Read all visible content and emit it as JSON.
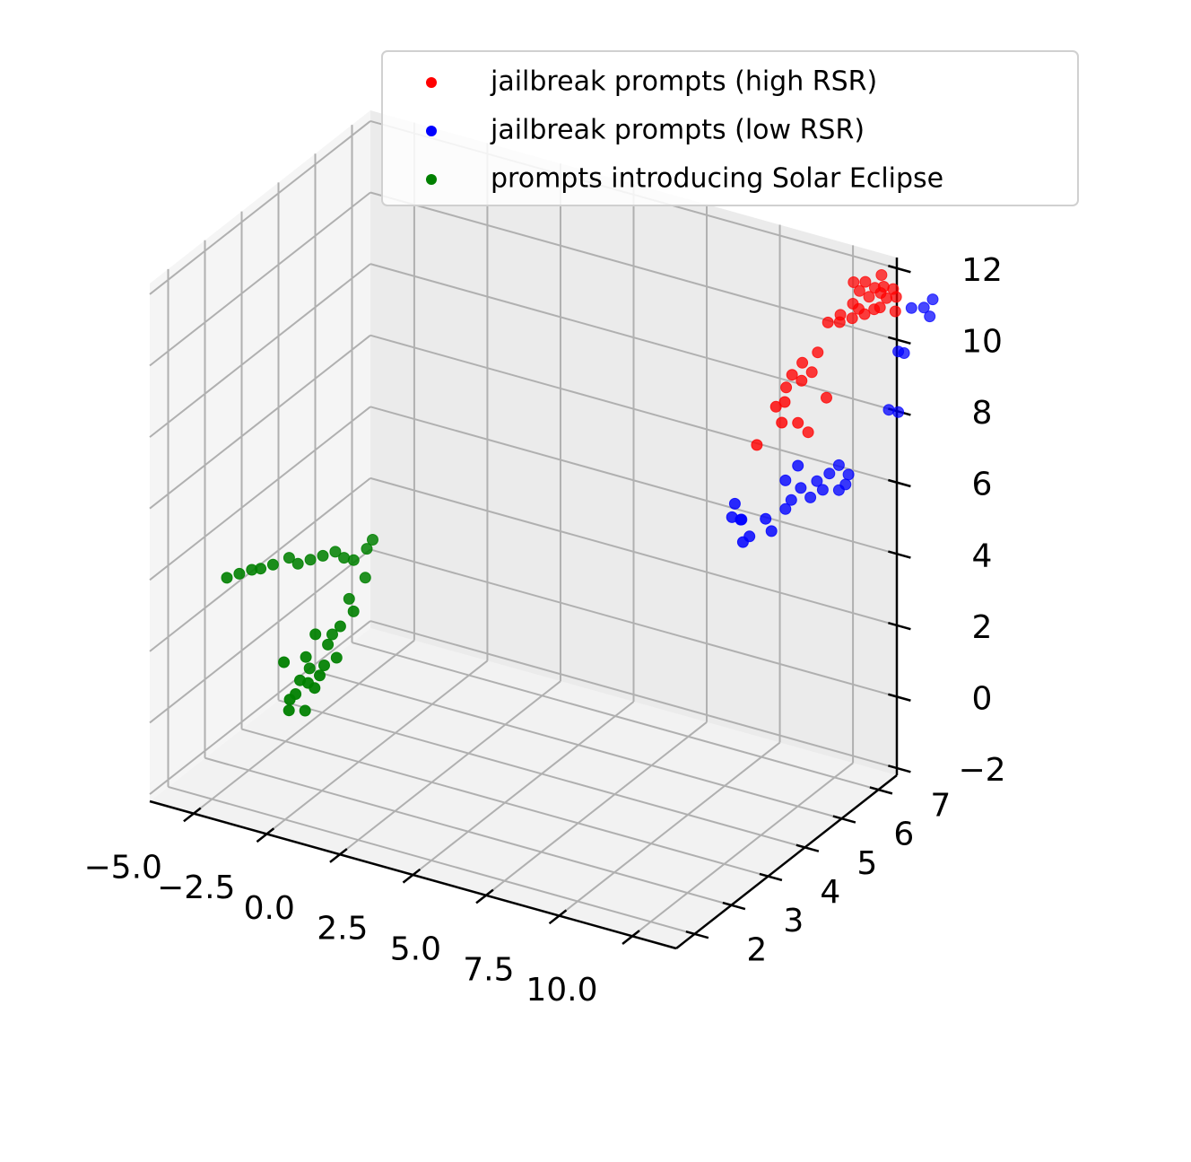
{
  "chart_data": {
    "type": "scatter",
    "projection": "3d",
    "grid": true,
    "legend_position": "top-right",
    "axes": {
      "x": {
        "range": [
          -6.5,
          11.5
        ],
        "ticks": [
          -5.0,
          -2.5,
          0.0,
          2.5,
          5.0,
          7.5,
          10.0
        ],
        "tick_labels": [
          "−5.0",
          "−2.5",
          "0.0",
          "2.5",
          "5.0",
          "7.5",
          "10.0"
        ]
      },
      "y": {
        "range": [
          1.5,
          7.5
        ],
        "ticks": [
          2,
          3,
          4,
          5,
          6,
          7
        ],
        "tick_labels": [
          "2",
          "3",
          "4",
          "5",
          "6",
          "7"
        ]
      },
      "z": {
        "range": [
          -2.2,
          12.3
        ],
        "ticks": [
          -2,
          0,
          2,
          4,
          6,
          8,
          10,
          12
        ],
        "tick_labels": [
          "−2",
          "0",
          "2",
          "4",
          "6",
          "8",
          "10",
          "12"
        ]
      }
    },
    "series": [
      {
        "name": "jailbreak prompts (high RSR)",
        "color": "#ff0000",
        "points": [
          [
            9.1,
            6.4,
            9.0
          ],
          [
            9.3,
            6.4,
            9.4
          ],
          [
            9.5,
            6.5,
            9.2
          ],
          [
            9.4,
            6.6,
            9.6
          ],
          [
            9.6,
            6.7,
            9.3
          ],
          [
            9.0,
            6.2,
            8.6
          ],
          [
            9.2,
            6.2,
            8.2
          ],
          [
            9.5,
            6.4,
            8.1
          ],
          [
            9.3,
            6.2,
            8.8
          ],
          [
            9.8,
            6.7,
            9.9
          ],
          [
            8.6,
            6.0,
            7.6
          ],
          [
            9.6,
            6.6,
            7.7
          ],
          [
            10.1,
            6.7,
            8.7
          ],
          [
            9.9,
            6.9,
            10.6
          ],
          [
            10.3,
            6.9,
            10.7
          ],
          [
            10.6,
            7.0,
            10.8
          ],
          [
            10.9,
            7.1,
            10.9
          ],
          [
            11.1,
            7.2,
            11.0
          ],
          [
            11.3,
            7.2,
            11.1
          ],
          [
            10.4,
            7.2,
            11.6
          ],
          [
            10.6,
            7.2,
            11.4
          ],
          [
            10.8,
            7.3,
            11.2
          ],
          [
            11.0,
            7.3,
            11.5
          ],
          [
            11.2,
            7.3,
            11.4
          ],
          [
            11.4,
            7.3,
            11.3
          ],
          [
            11.5,
            7.4,
            11.5
          ],
          [
            11.1,
            7.4,
            11.8
          ],
          [
            10.5,
            7.1,
            11.1
          ],
          [
            10.7,
            7.1,
            11.0
          ],
          [
            11.6,
            7.4,
            11.3
          ],
          [
            11.3,
            7.3,
            11.6
          ],
          [
            11.7,
            7.3,
            11.0
          ],
          [
            10.2,
            7.0,
            10.8
          ],
          [
            10.8,
            7.2,
            11.7
          ]
        ]
      },
      {
        "name": "jailbreak prompts (low RSR)",
        "color": "#0000ff",
        "points": [
          [
            8.1,
            5.8,
            6.0
          ],
          [
            8.3,
            5.8,
            5.6
          ],
          [
            8.5,
            5.7,
            5.1
          ],
          [
            8.6,
            5.8,
            5.2
          ],
          [
            8.9,
            6.0,
            5.6
          ],
          [
            9.2,
            6.3,
            5.7
          ],
          [
            9.4,
            6.3,
            6.0
          ],
          [
            9.6,
            6.4,
            6.3
          ],
          [
            9.9,
            6.6,
            6.4
          ],
          [
            10.2,
            6.7,
            6.6
          ],
          [
            10.4,
            6.8,
            6.8
          ],
          [
            10.1,
            6.6,
            6.2
          ],
          [
            10.6,
            6.9,
            6.5
          ],
          [
            10.4,
            6.8,
            6.1
          ],
          [
            8.2,
            5.9,
            5.5
          ],
          [
            8.0,
            5.8,
            5.6
          ],
          [
            9.1,
            6.0,
            5.3
          ],
          [
            9.8,
            6.5,
            6.0
          ],
          [
            10.5,
            6.9,
            6.2
          ],
          [
            11.6,
            7.2,
            8.3
          ],
          [
            11.8,
            7.3,
            8.2
          ],
          [
            11.8,
            7.3,
            9.9
          ],
          [
            12.0,
            7.3,
            9.9
          ],
          [
            12.3,
            7.6,
            11.0
          ],
          [
            12.0,
            7.5,
            11.0
          ],
          [
            12.6,
            7.6,
            11.3
          ],
          [
            12.5,
            7.6,
            10.8
          ],
          [
            9.2,
            6.3,
            6.5
          ],
          [
            9.5,
            6.4,
            6.9
          ]
        ]
      },
      {
        "name": "prompts introducing Solar Eclipse",
        "color": "#008000",
        "points": [
          [
            -6.0,
            3.2,
            2.8
          ],
          [
            -5.7,
            3.3,
            2.9
          ],
          [
            -5.4,
            3.4,
            3.0
          ],
          [
            -5.1,
            3.4,
            3.1
          ],
          [
            -4.8,
            3.5,
            3.2
          ],
          [
            -4.5,
            3.7,
            3.3
          ],
          [
            -4.2,
            3.7,
            3.2
          ],
          [
            -3.9,
            3.8,
            3.3
          ],
          [
            -3.6,
            3.9,
            3.4
          ],
          [
            -3.3,
            4.0,
            3.5
          ],
          [
            -3.0,
            4.0,
            3.4
          ],
          [
            -2.8,
            4.1,
            3.3
          ],
          [
            -2.6,
            4.3,
            3.5
          ],
          [
            -2.4,
            4.3,
            3.8
          ],
          [
            -2.4,
            4.1,
            2.9
          ],
          [
            -2.7,
            3.9,
            2.4
          ],
          [
            -2.9,
            3.6,
            1.6
          ],
          [
            -3.3,
            3.2,
            1.2
          ],
          [
            -3.1,
            3.3,
            1.8
          ],
          [
            -2.8,
            3.4,
            1.5
          ],
          [
            -2.8,
            3.3,
            1.0
          ],
          [
            -3.1,
            3.1,
            0.6
          ],
          [
            -3.4,
            3.0,
            0.3
          ],
          [
            -3.6,
            3.0,
            0.1
          ],
          [
            -3.5,
            3.2,
            0.5
          ],
          [
            -3.3,
            3.3,
            0.8
          ],
          [
            -3.0,
            3.2,
            0.4
          ],
          [
            -2.7,
            3.1,
            0.9
          ],
          [
            -3.8,
            3.0,
            1.1
          ],
          [
            -2.5,
            3.4,
            1.2
          ],
          [
            -2.3,
            3.7,
            2.3
          ],
          [
            -2.5,
            3.5,
            2.0
          ],
          [
            -3.5,
            2.9,
            -0.1
          ],
          [
            -3.2,
            3.1,
            -0.2
          ]
        ]
      }
    ]
  }
}
